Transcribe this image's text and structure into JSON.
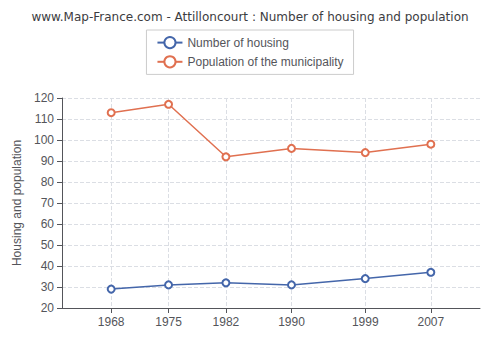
{
  "chart_data": {
    "type": "line",
    "title": "www.Map-France.com - Attilloncourt : Number of housing and population",
    "ylabel": "Housing and population",
    "x": [
      1968,
      1975,
      1982,
      1990,
      1999,
      2007
    ],
    "series": [
      {
        "name": "Number of housing",
        "color": "#4466aa",
        "values": [
          29,
          31,
          32,
          31,
          34,
          37
        ]
      },
      {
        "name": "Population of the municipality",
        "color": "#e07050",
        "values": [
          113,
          117,
          92,
          96,
          94,
          98
        ]
      }
    ],
    "xlim": [
      1962,
      2013
    ],
    "xticks": [
      1968,
      1975,
      1982,
      1990,
      1999,
      2007
    ],
    "ylim": [
      20,
      120
    ],
    "yticks": [
      20,
      30,
      40,
      50,
      60,
      70,
      80,
      90,
      100,
      110,
      120
    ],
    "grid": true,
    "legend": "top",
    "marker": "circle"
  }
}
